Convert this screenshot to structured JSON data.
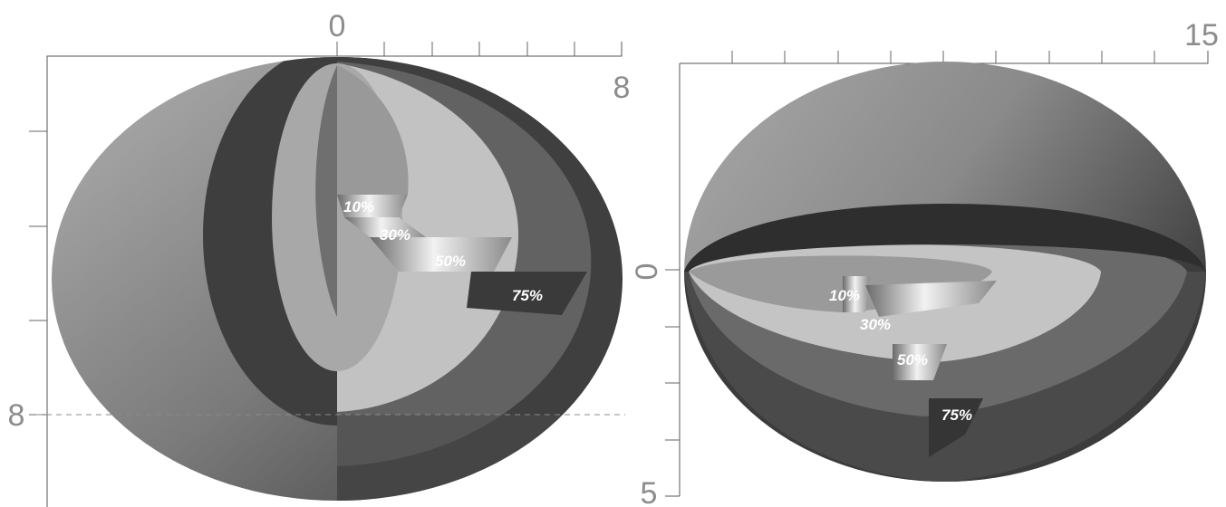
{
  "left_panel": {
    "top_axis_start": "0",
    "top_axis_end": "8",
    "left_axis_value": "8",
    "level_labels": [
      "10%",
      "30%",
      "50%",
      "75%"
    ]
  },
  "right_panel": {
    "top_axis_end": "15",
    "left_axis_start": "0",
    "left_axis_end": "5",
    "level_labels": [
      "10%",
      "30%",
      "50%",
      "75%"
    ]
  }
}
